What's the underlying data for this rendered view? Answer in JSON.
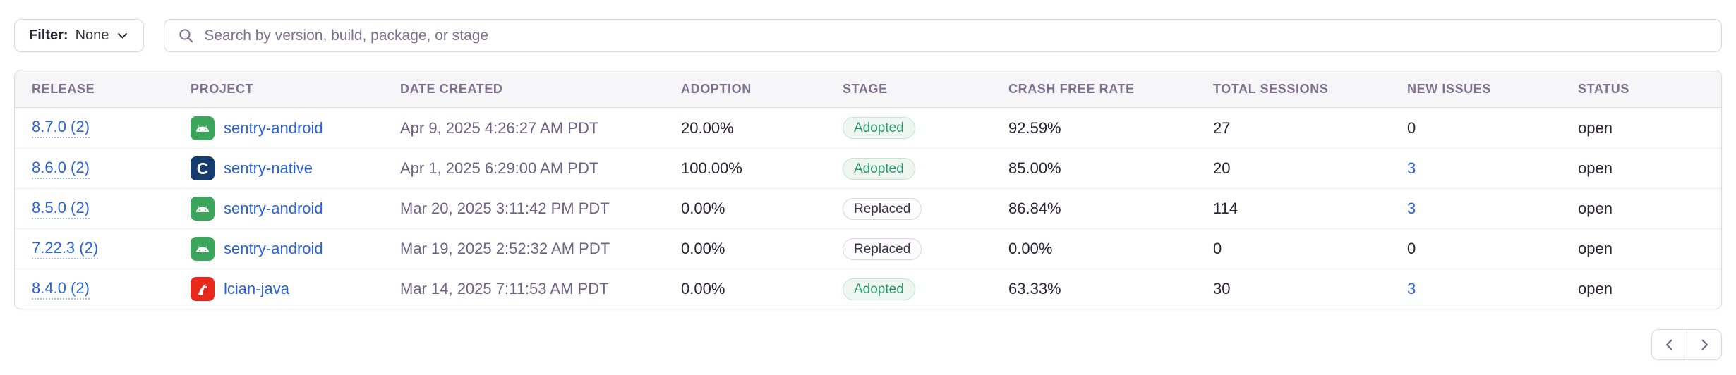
{
  "filter": {
    "label": "Filter:",
    "value": "None"
  },
  "search": {
    "placeholder": "Search by version, build, package, or stage"
  },
  "table": {
    "columns": [
      "Release",
      "Project",
      "Date Created",
      "Adoption",
      "Stage",
      "Crash Free Rate",
      "Total Sessions",
      "New Issues",
      "Status"
    ],
    "rows": [
      {
        "release": "8.7.0 (2)",
        "platform": "android",
        "platform_icon": "android-icon",
        "project": "sentry-android",
        "date_created": "Apr 9, 2025 4:26:27 AM PDT",
        "adoption": "20.00%",
        "stage": "Adopted",
        "crash_free_rate": "92.59%",
        "total_sessions": "27",
        "new_issues": "0",
        "new_issues_link": false,
        "status": "open"
      },
      {
        "release": "8.6.0 (2)",
        "platform": "c",
        "platform_icon": "c-icon",
        "project": "sentry-native",
        "date_created": "Apr 1, 2025 6:29:00 AM PDT",
        "adoption": "100.00%",
        "stage": "Adopted",
        "crash_free_rate": "85.00%",
        "total_sessions": "20",
        "new_issues": "3",
        "new_issues_link": true,
        "status": "open"
      },
      {
        "release": "8.5.0 (2)",
        "platform": "android",
        "platform_icon": "android-icon",
        "project": "sentry-android",
        "date_created": "Mar 20, 2025 3:11:42 PM PDT",
        "adoption": "0.00%",
        "stage": "Replaced",
        "crash_free_rate": "86.84%",
        "total_sessions": "114",
        "new_issues": "3",
        "new_issues_link": true,
        "status": "open"
      },
      {
        "release": "7.22.3 (2)",
        "platform": "android",
        "platform_icon": "android-icon",
        "project": "sentry-android",
        "date_created": "Mar 19, 2025 2:52:32 AM PDT",
        "adoption": "0.00%",
        "stage": "Replaced",
        "crash_free_rate": "0.00%",
        "total_sessions": "0",
        "new_issues": "0",
        "new_issues_link": false,
        "status": "open"
      },
      {
        "release": "8.4.0 (2)",
        "platform": "java",
        "platform_icon": "java-icon",
        "project": "lcian-java",
        "date_created": "Mar 14, 2025 7:11:53 AM PDT",
        "adoption": "0.00%",
        "stage": "Adopted",
        "crash_free_rate": "63.33%",
        "total_sessions": "30",
        "new_issues": "3",
        "new_issues_link": true,
        "status": "open"
      }
    ]
  },
  "pagination": {
    "prev_icon": "chevron-left-icon",
    "next_icon": "chevron-right-icon"
  },
  "colors": {
    "link": "#2A63DC",
    "text": "#2B2233",
    "subtext": "#80708F",
    "border": "#E0DCE5",
    "header_bg": "#F6F5F8",
    "badge_adopted_text": "#26996B",
    "platform_android": "#3CA55C",
    "platform_c": "#143D6D",
    "platform_java": "#E8291C"
  }
}
